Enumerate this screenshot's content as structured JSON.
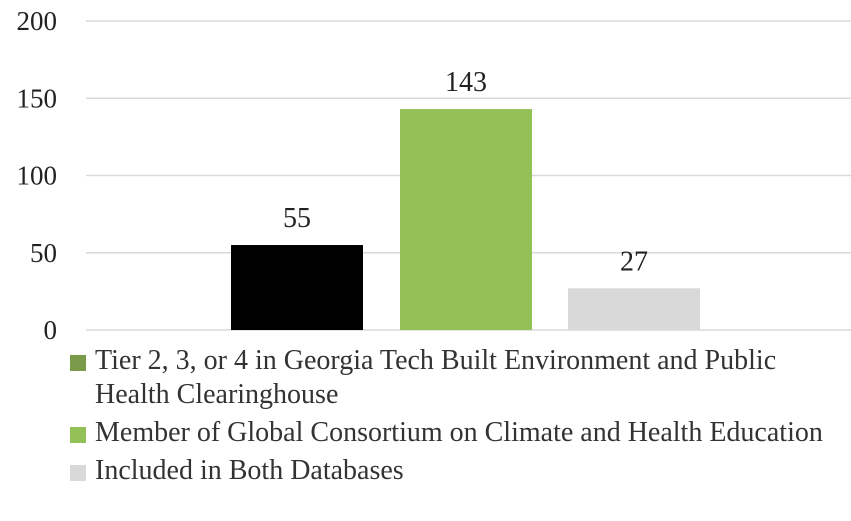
{
  "chart_data": {
    "type": "bar",
    "categories": [
      "Tier 2, 3, or 4 in Georgia Tech Built Environment and Public Health Clearinghouse",
      "Member of Global Consortium on Climate and Health Education",
      "Included in Both Databases"
    ],
    "series": [
      {
        "name": "Tier 2, 3, or 4 in Georgia Tech Built Environment and Public Health Clearinghouse",
        "value": 55,
        "bar_color": "#000000",
        "legend_color": "#7a9a4a"
      },
      {
        "name": "Member of Global Consortium on Climate and Health Education",
        "value": 143,
        "bar_color": "#94c058",
        "legend_color": "#94c058"
      },
      {
        "name": "Included in Both Databases",
        "value": 27,
        "bar_color": "#d9d9d9",
        "legend_color": "#d9d9d9"
      }
    ],
    "y_ticks": [
      0,
      50,
      100,
      150,
      200
    ],
    "ylim": [
      0,
      200
    ],
    "grid": true,
    "gridline_color": "#d9d9d9",
    "legend_position": "bottom",
    "data_labels": [
      "55",
      "143",
      "27"
    ],
    "title": "",
    "xlabel": "",
    "ylabel": ""
  }
}
